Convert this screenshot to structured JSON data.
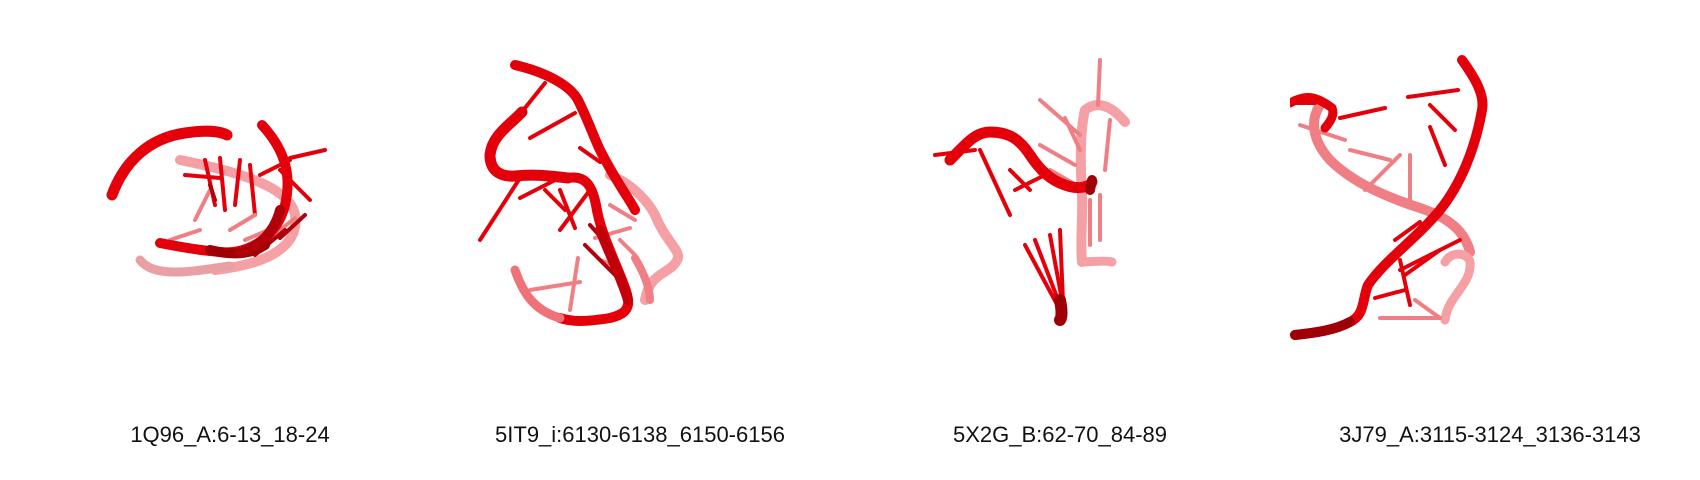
{
  "colors": {
    "background": "#ffffff",
    "ribbon_front": "#e4000b",
    "ribbon_dark": "#9e0008",
    "ribbon_faded": "#f07f85",
    "caption_text": "#111111"
  },
  "panels": [
    {
      "id": "panel-1",
      "caption": "1Q96_A:6-13_18-24",
      "icon": "rna-tube-model"
    },
    {
      "id": "panel-2",
      "caption": "5IT9_i:6130-6138_6150-6156",
      "icon": "rna-tube-model"
    },
    {
      "id": "panel-3",
      "caption": "5X2G_B:62-70_84-89",
      "icon": "rna-tube-model"
    },
    {
      "id": "panel-4",
      "caption": "3J79_A:3115-3124_3136-3143",
      "icon": "rna-tube-model"
    }
  ]
}
